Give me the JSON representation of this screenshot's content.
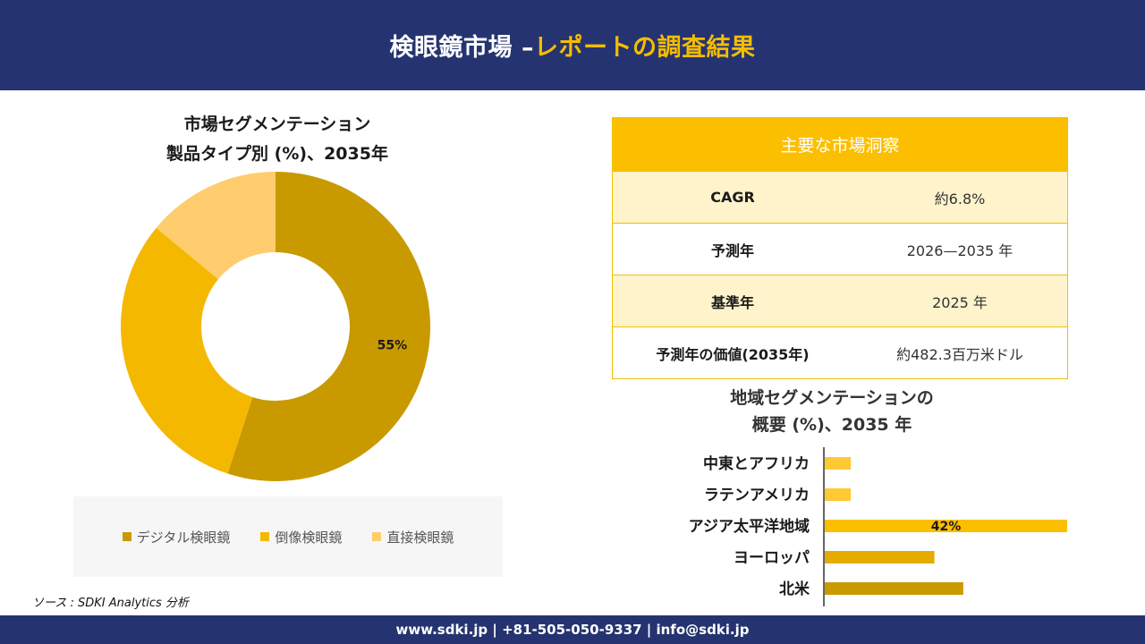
{
  "header": {
    "title_main": "検眼鏡市場 –",
    "title_accent": "レポートの調査結果"
  },
  "chart_data": [
    {
      "type": "pie",
      "title_line1": "市場セグメンテーション",
      "title_line2": "製品タイプ別 (%)、2035年",
      "categories": [
        "デジタル検眼鏡",
        "倒像検眼鏡",
        "直接検眼鏡"
      ],
      "values": [
        55,
        31,
        14
      ],
      "data_labels": [
        "55%",
        "",
        ""
      ],
      "colors": [
        "#c89a00",
        "#f5b800",
        "#ffcc6e"
      ],
      "legend_position": "bottom"
    },
    {
      "type": "bar",
      "orientation": "horizontal",
      "title_line1": "地域セグメンテーションの",
      "title_line2": "概要 (%)、2035 年",
      "categories": [
        "中東とアフリカ",
        "ラテンアメリカ",
        "アジア太平洋地域",
        "ヨーロッパ",
        "北米"
      ],
      "values": [
        4.5,
        4.5,
        42,
        19,
        24
      ],
      "data_labels": [
        "",
        "",
        "42%",
        "",
        ""
      ],
      "colors": [
        "#ffc933",
        "#ffc933",
        "#fcbf00",
        "#e4ab00",
        "#c99a00"
      ],
      "xlim": [
        0,
        42
      ]
    }
  ],
  "insights": {
    "title": "主要な市場洞察",
    "rows": [
      {
        "label": "CAGR",
        "value": "約6.8%"
      },
      {
        "label": "予測年",
        "value": "2026—2035 年"
      },
      {
        "label": "基準年",
        "value": "2025 年"
      },
      {
        "label": "予測年の価値(2035年)",
        "value": "約482.3百万米ドル"
      }
    ]
  },
  "source": "ソース : SDKI Analytics 分析",
  "footer": "www.sdki.jp | +81-505-050-9337 | info@sdki.jp"
}
